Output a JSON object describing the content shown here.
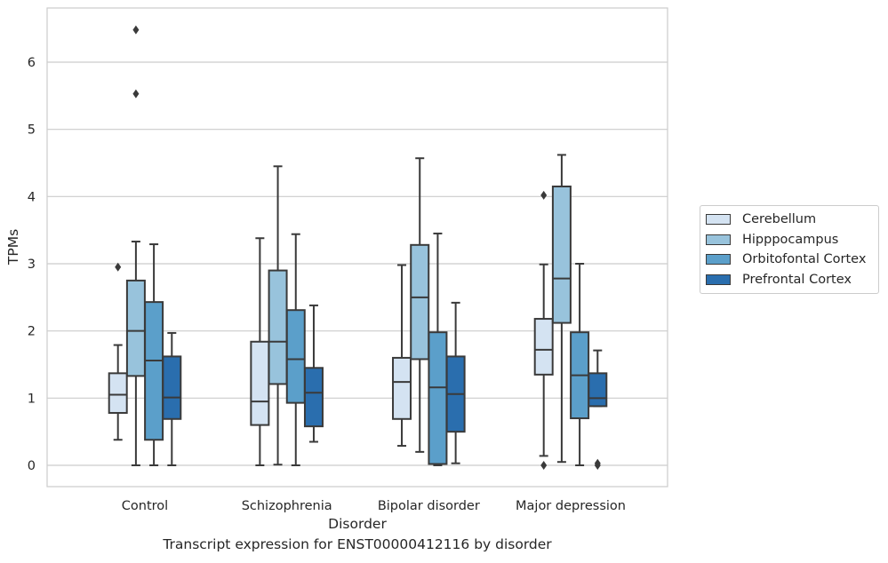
{
  "chart_data": {
    "type": "box",
    "title": "Transcript expression for ENST00000412116 by disorder",
    "xlabel": "Disorder",
    "ylabel": "TPMs",
    "ylim": [
      -0.3,
      6.8
    ],
    "yticks": [
      0,
      1,
      2,
      3,
      4,
      5,
      6
    ],
    "grid": "horizontal",
    "legend_position": "right",
    "categories": [
      "Control",
      "Schizophrenia",
      "Bipolar disorder",
      "Major depression"
    ],
    "series": [
      {
        "name": "Cerebellum",
        "color": "#d4e3f2",
        "boxes": [
          {
            "whisker_low": 0.38,
            "q1": 0.78,
            "median": 1.05,
            "q3": 1.37,
            "whisker_high": 1.79,
            "outliers": [
              2.95
            ]
          },
          {
            "whisker_low": 0.0,
            "q1": 0.6,
            "median": 0.95,
            "q3": 1.84,
            "whisker_high": 3.38,
            "outliers": []
          },
          {
            "whisker_low": 0.29,
            "q1": 0.69,
            "median": 1.24,
            "q3": 1.6,
            "whisker_high": 2.98,
            "outliers": []
          },
          {
            "whisker_low": 0.14,
            "q1": 1.35,
            "median": 1.72,
            "q3": 2.18,
            "whisker_high": 2.99,
            "outliers": [
              4.02,
              0.0
            ]
          }
        ]
      },
      {
        "name": "Hipppocampus",
        "color": "#98c3dc",
        "boxes": [
          {
            "whisker_low": 0.0,
            "q1": 1.33,
            "median": 2.0,
            "q3": 2.75,
            "whisker_high": 3.33,
            "outliers": [
              6.48,
              5.53
            ]
          },
          {
            "whisker_low": 0.01,
            "q1": 1.21,
            "median": 1.84,
            "q3": 2.9,
            "whisker_high": 4.45,
            "outliers": []
          },
          {
            "whisker_low": 0.2,
            "q1": 1.58,
            "median": 2.5,
            "q3": 3.28,
            "whisker_high": 4.57,
            "outliers": []
          },
          {
            "whisker_low": 0.05,
            "q1": 2.12,
            "median": 2.78,
            "q3": 4.15,
            "whisker_high": 4.62,
            "outliers": []
          }
        ]
      },
      {
        "name": "Orbitofontal Cortex",
        "color": "#5b9fca",
        "boxes": [
          {
            "whisker_low": 0.0,
            "q1": 0.38,
            "median": 1.56,
            "q3": 2.43,
            "whisker_high": 3.29,
            "outliers": []
          },
          {
            "whisker_low": 0.0,
            "q1": 0.93,
            "median": 1.58,
            "q3": 2.31,
            "whisker_high": 3.44,
            "outliers": []
          },
          {
            "whisker_low": 0.0,
            "q1": 0.02,
            "median": 1.16,
            "q3": 1.98,
            "whisker_high": 3.45,
            "outliers": []
          },
          {
            "whisker_low": 0.0,
            "q1": 0.7,
            "median": 1.34,
            "q3": 1.98,
            "whisker_high": 3.0,
            "outliers": []
          }
        ]
      },
      {
        "name": "Prefrontal Cortex",
        "color": "#2a6eae",
        "boxes": [
          {
            "whisker_low": 0.0,
            "q1": 0.69,
            "median": 1.01,
            "q3": 1.62,
            "whisker_high": 1.97,
            "outliers": []
          },
          {
            "whisker_low": 0.35,
            "q1": 0.58,
            "median": 1.08,
            "q3": 1.45,
            "whisker_high": 2.38,
            "outliers": []
          },
          {
            "whisker_low": 0.03,
            "q1": 0.5,
            "median": 1.06,
            "q3": 1.62,
            "whisker_high": 2.42,
            "outliers": []
          },
          {
            "whisker_low": 0.88,
            "q1": 0.88,
            "median": 1.0,
            "q3": 1.37,
            "whisker_high": 1.71,
            "outliers": [
              0.03,
              0.0
            ]
          }
        ]
      }
    ]
  }
}
